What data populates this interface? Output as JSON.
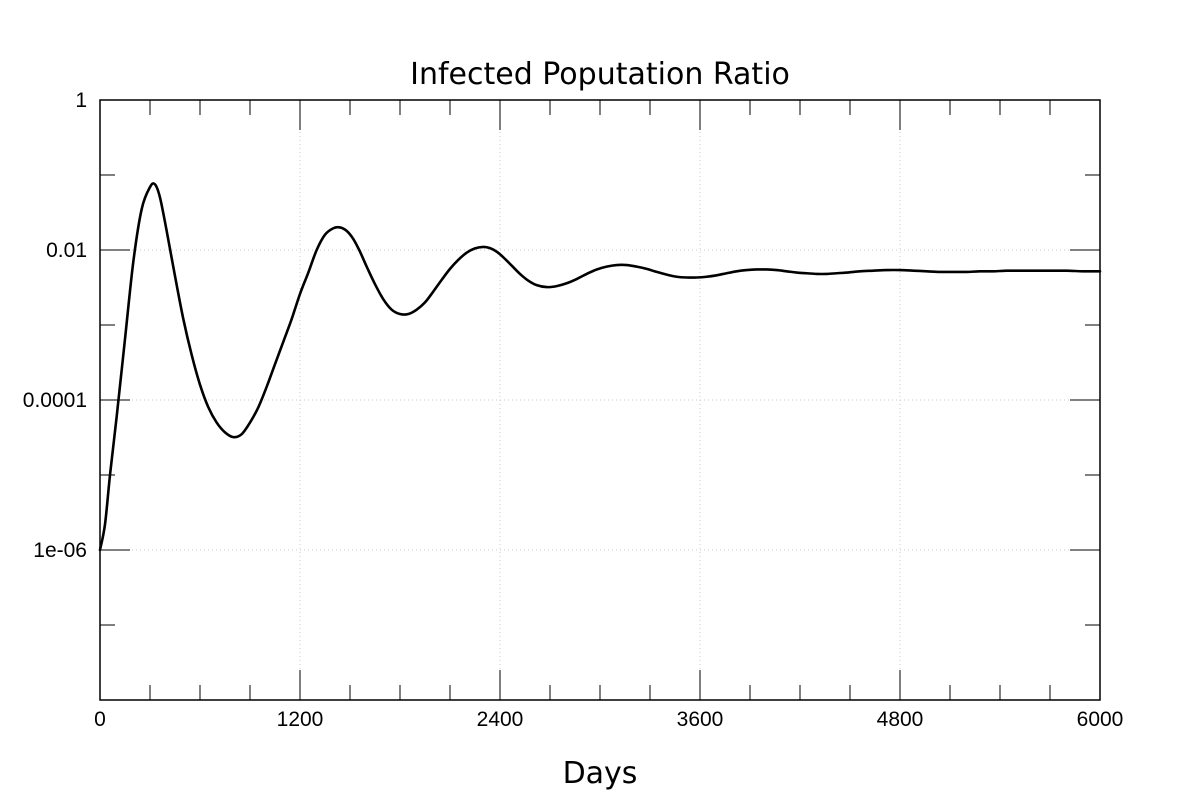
{
  "chart_data": {
    "type": "line",
    "title": "Infected Poputation Ratio",
    "xlabel": "Days",
    "ylabel": "",
    "xlim": [
      0,
      6000
    ],
    "ylim": [
      1e-08,
      1
    ],
    "yscale": "log",
    "grid": true,
    "x_ticks": [
      0,
      1200,
      2400,
      3600,
      4800,
      6000
    ],
    "x_tick_labels": [
      "0",
      "1200",
      "2400",
      "3600",
      "4800",
      "6000"
    ],
    "x_minor_ticks": [
      300,
      600,
      900,
      1500,
      1800,
      2100,
      2700,
      3000,
      3300,
      3900,
      4200,
      4500,
      5100,
      5400,
      5700
    ],
    "y_ticks": [
      1,
      0.01,
      0.0001,
      1e-06
    ],
    "y_tick_labels": [
      "1",
      "0.01",
      "0.0001",
      "1e-06"
    ],
    "y_minor_ticks": [
      0.1,
      0.001,
      1e-05,
      1e-07
    ],
    "series": [
      {
        "color": "#000000",
        "x": [
          0,
          30,
          60,
          100,
          150,
          200,
          250,
          300,
          330,
          360,
          400,
          450,
          500,
          550,
          600,
          650,
          700,
          750,
          800,
          850,
          900,
          950,
          1000,
          1050,
          1100,
          1150,
          1200,
          1250,
          1300,
          1350,
          1400,
          1440,
          1480,
          1520,
          1560,
          1600,
          1650,
          1700,
          1750,
          1800,
          1850,
          1900,
          1950,
          2000,
          2050,
          2100,
          2150,
          2200,
          2250,
          2300,
          2340,
          2380,
          2420,
          2470,
          2520,
          2570,
          2620,
          2680,
          2740,
          2800,
          2860,
          2920,
          2980,
          3040,
          3100,
          3160,
          3220,
          3280,
          3340,
          3400,
          3460,
          3520,
          3580,
          3640,
          3700,
          3760,
          3820,
          3880,
          3940,
          4000,
          4060,
          4120,
          4180,
          4240,
          4300,
          4360,
          4420,
          4480,
          4560,
          4640,
          4720,
          4800,
          4880,
          4960,
          5040,
          5120,
          5200,
          5280,
          5360,
          5440,
          5520,
          5600,
          5700,
          5800,
          5900,
          6000
        ],
        "y": [
          1e-06,
          2.2e-06,
          1e-05,
          6e-05,
          0.00065,
          0.007,
          0.035,
          0.069,
          0.075,
          0.05,
          0.018,
          0.0045,
          0.0012,
          0.0004,
          0.00016,
          8e-05,
          5e-05,
          3.7e-05,
          3.2e-05,
          3.5e-05,
          5e-05,
          8e-05,
          0.00015,
          0.0003,
          0.0006,
          0.0012,
          0.0026,
          0.005,
          0.01,
          0.016,
          0.0195,
          0.02,
          0.018,
          0.014,
          0.0095,
          0.006,
          0.0035,
          0.0022,
          0.0016,
          0.0014,
          0.0014,
          0.0016,
          0.002,
          0.0028,
          0.004,
          0.0056,
          0.0074,
          0.0092,
          0.0105,
          0.011,
          0.0106,
          0.0095,
          0.008,
          0.0062,
          0.0048,
          0.0039,
          0.0034,
          0.0032,
          0.0033,
          0.0036,
          0.0041,
          0.0048,
          0.0055,
          0.006,
          0.0063,
          0.0063,
          0.006,
          0.0056,
          0.0051,
          0.0047,
          0.0044,
          0.0043,
          0.0043,
          0.0044,
          0.0046,
          0.0049,
          0.0052,
          0.0054,
          0.0055,
          0.0055,
          0.0054,
          0.0052,
          0.005,
          0.0049,
          0.0048,
          0.0048,
          0.0049,
          0.005,
          0.0052,
          0.0053,
          0.0054,
          0.0054,
          0.0053,
          0.0052,
          0.0051,
          0.0051,
          0.0051,
          0.0052,
          0.0052,
          0.0053,
          0.0053,
          0.0053,
          0.0053,
          0.0053,
          0.0052,
          0.0052
        ]
      }
    ]
  }
}
